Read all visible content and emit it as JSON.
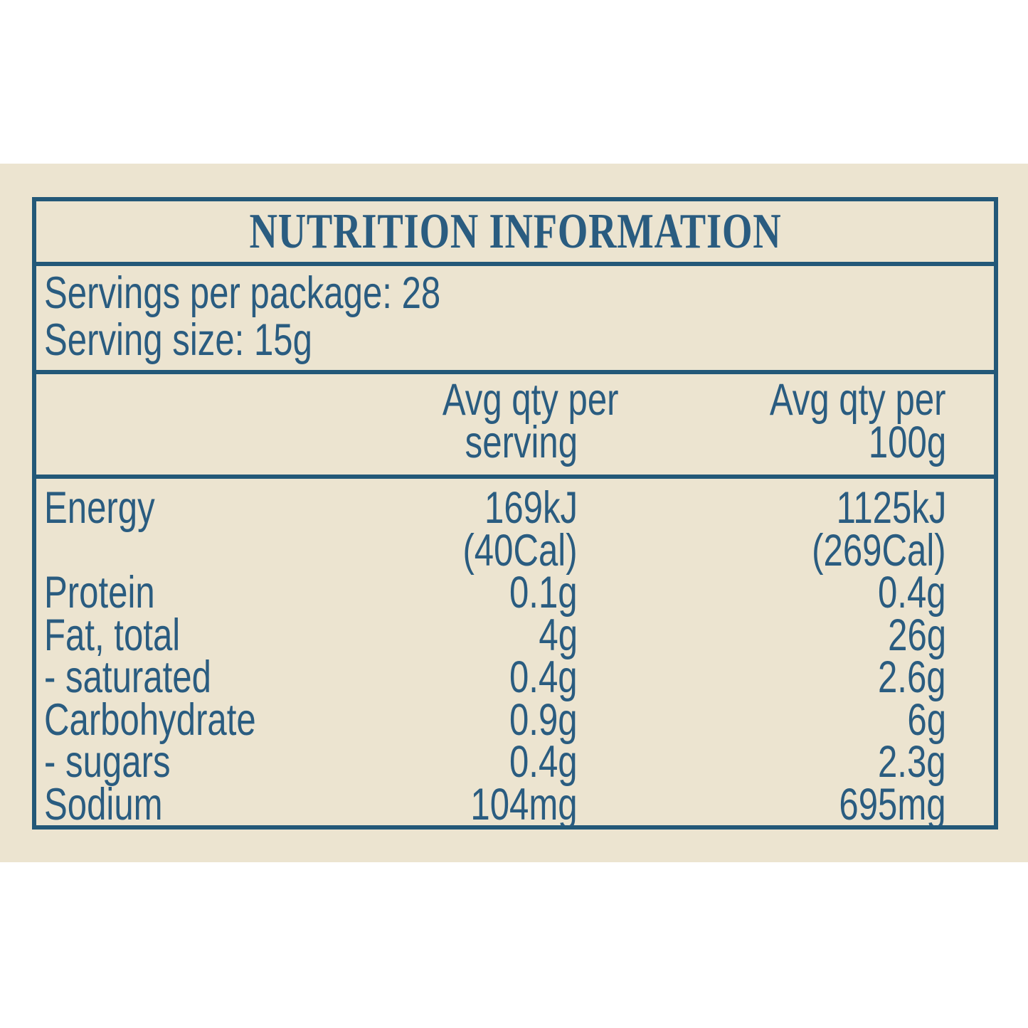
{
  "panel": {
    "title": "NUTRITION INFORMATION",
    "servings_per_package": "Servings per package: 28",
    "serving_size": "Serving size: 15g",
    "columns": {
      "per_serving_line1": "Avg qty per",
      "per_serving_line2": "serving",
      "per_100g_line1": "Avg qty per",
      "per_100g_line2": "100g"
    },
    "rows": [
      {
        "label": "Energy",
        "per_serving": "169kJ",
        "per_100g": "1125kJ"
      },
      {
        "label": "",
        "per_serving": "(40Cal)",
        "per_100g": "(269Cal)"
      },
      {
        "label": "Protein",
        "per_serving": "0.1g",
        "per_100g": "0.4g"
      },
      {
        "label": "Fat, total",
        "per_serving": "4g",
        "per_100g": "26g"
      },
      {
        "label": "- saturated",
        "per_serving": "0.4g",
        "per_100g": "2.6g"
      },
      {
        "label": "Carbohydrate",
        "per_serving": "0.9g",
        "per_100g": "6g"
      },
      {
        "label": "- sugars",
        "per_serving": "0.4g",
        "per_100g": "2.3g"
      },
      {
        "label": "Sodium",
        "per_serving": "104mg",
        "per_100g": "695mg"
      }
    ],
    "colors": {
      "text_blue": "#2a5c80",
      "border_blue": "#235878",
      "cream": "#ece4d0",
      "page_white": "#ffffff"
    }
  }
}
